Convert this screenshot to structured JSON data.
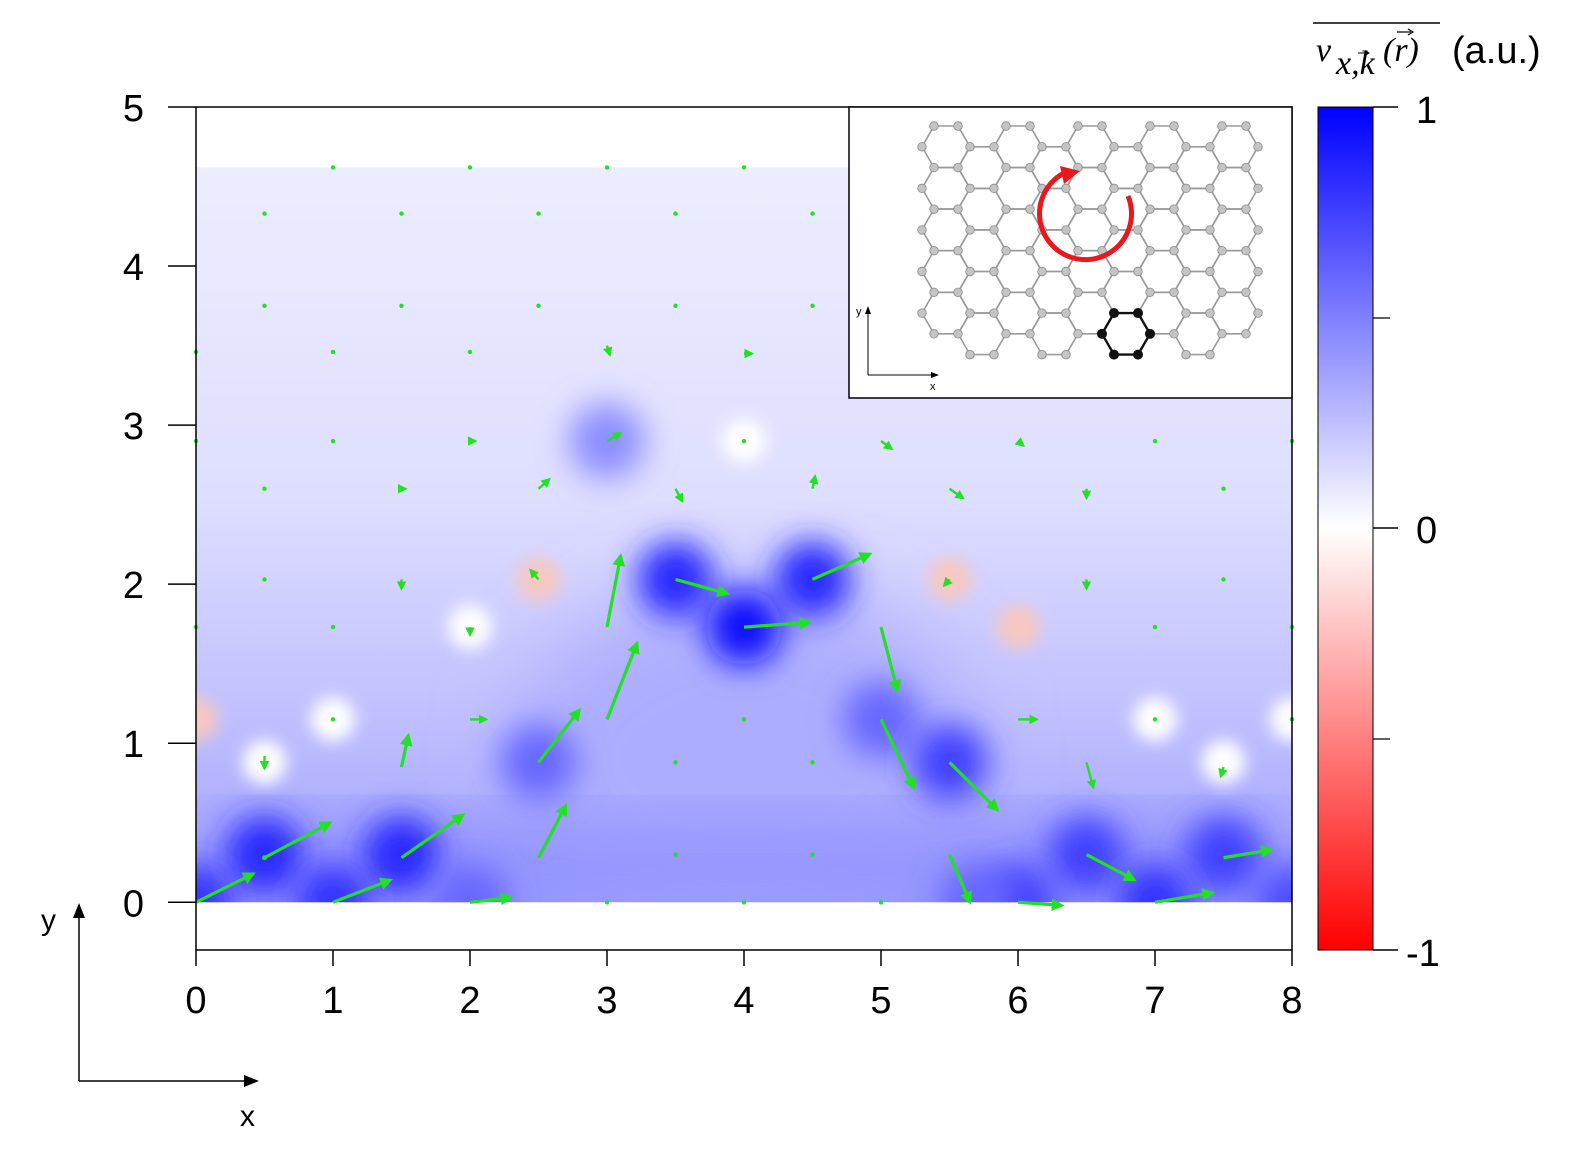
{
  "chart_data": {
    "type": "heatmap",
    "colorbar": {
      "label": "v̄x,k(r) (a.u.)",
      "label_main": "v",
      "label_sub": "x,k",
      "label_arg": "(r)",
      "label_unit": "(a.u.)",
      "ticks": [
        1,
        0,
        -1
      ],
      "range": [
        -1,
        1
      ],
      "colormap": [
        "#ff0000",
        "#ffffff",
        "#0000ff"
      ]
    },
    "xlim": [
      0,
      8
    ],
    "ylim": [
      -0.3,
      5
    ],
    "xticks": [
      0,
      1,
      2,
      3,
      4,
      5,
      6,
      7,
      8
    ],
    "yticks": [
      0,
      1,
      2,
      3,
      4,
      5
    ],
    "data_region": {
      "x": [
        0,
        8
      ],
      "y": [
        0,
        4.62
      ]
    },
    "axes_indicator": {
      "x_label": "x",
      "y_label": "y"
    },
    "intensity_peaks": [
      {
        "x": 0.5,
        "y": 0.3,
        "v": 0.85
      },
      {
        "x": 1.5,
        "y": 0.3,
        "v": 0.85
      },
      {
        "x": 1.0,
        "y": 0.0,
        "v": 0.8
      },
      {
        "x": 0.0,
        "y": 0.0,
        "v": 0.8
      },
      {
        "x": 2.5,
        "y": 0.88,
        "v": 0.6
      },
      {
        "x": 3.5,
        "y": 2.03,
        "v": 0.85
      },
      {
        "x": 4.5,
        "y": 2.03,
        "v": 0.85
      },
      {
        "x": 4.0,
        "y": 1.73,
        "v": 0.95
      },
      {
        "x": 5.0,
        "y": 1.15,
        "v": 0.6
      },
      {
        "x": 5.5,
        "y": 0.88,
        "v": 0.75
      },
      {
        "x": 6.5,
        "y": 0.3,
        "v": 0.75
      },
      {
        "x": 7.5,
        "y": 0.3,
        "v": 0.75
      },
      {
        "x": 7.0,
        "y": 0.0,
        "v": 0.8
      },
      {
        "x": 6.0,
        "y": 0.0,
        "v": 0.75
      },
      {
        "x": 3.0,
        "y": 2.9,
        "v": 0.45
      },
      {
        "x": 2.0,
        "y": 0.0,
        "v": 0.6
      },
      {
        "x": 5.7,
        "y": 0.0,
        "v": 0.6
      },
      {
        "x": 8.0,
        "y": 0.0,
        "v": 0.7
      }
    ],
    "low_spots": [
      {
        "x": 2.5,
        "y": 2.03,
        "v": -0.15
      },
      {
        "x": 5.5,
        "y": 2.03,
        "v": -0.08
      },
      {
        "x": 6.0,
        "y": 1.73,
        "v": -0.06
      },
      {
        "x": 0.0,
        "y": 1.15,
        "v": -0.06
      },
      {
        "x": 4.0,
        "y": 2.9,
        "v": -0.03
      },
      {
        "x": 1.0,
        "y": 1.15,
        "v": -0.02
      },
      {
        "x": 7.0,
        "y": 1.15,
        "v": -0.02
      },
      {
        "x": 8.0,
        "y": 1.15,
        "v": -0.02
      },
      {
        "x": 2.0,
        "y": 1.73,
        "v": -0.02
      },
      {
        "x": 0.5,
        "y": 0.88,
        "v": -0.02
      },
      {
        "x": 7.5,
        "y": 0.88,
        "v": -0.02
      }
    ],
    "vectors": [
      {
        "x": 0.0,
        "y": 0.0,
        "dx": 0.42,
        "dy": 0.18
      },
      {
        "x": 0.5,
        "y": 0.28,
        "dx": 0.48,
        "dy": 0.22
      },
      {
        "x": 1.0,
        "y": 0.0,
        "dx": 0.42,
        "dy": 0.14
      },
      {
        "x": 1.5,
        "y": 0.28,
        "dx": 0.45,
        "dy": 0.27
      },
      {
        "x": 2.0,
        "y": 0.0,
        "dx": 0.3,
        "dy": 0.03
      },
      {
        "x": 2.5,
        "y": 0.28,
        "dx": 0.2,
        "dy": 0.33
      },
      {
        "x": 2.5,
        "y": 0.88,
        "dx": 0.3,
        "dy": 0.33
      },
      {
        "x": 3.0,
        "y": 1.15,
        "dx": 0.22,
        "dy": 0.48
      },
      {
        "x": 3.0,
        "y": 1.73,
        "dx": 0.1,
        "dy": 0.45
      },
      {
        "x": 3.5,
        "y": 2.03,
        "dx": 0.38,
        "dy": -0.09
      },
      {
        "x": 4.0,
        "y": 1.73,
        "dx": 0.48,
        "dy": 0.03
      },
      {
        "x": 4.5,
        "y": 2.03,
        "dx": 0.42,
        "dy": 0.16
      },
      {
        "x": 5.0,
        "y": 1.73,
        "dx": 0.12,
        "dy": -0.4
      },
      {
        "x": 5.0,
        "y": 1.15,
        "dx": 0.24,
        "dy": -0.43
      },
      {
        "x": 5.5,
        "y": 0.88,
        "dx": 0.35,
        "dy": -0.3
      },
      {
        "x": 5.5,
        "y": 0.3,
        "dx": 0.15,
        "dy": -0.3
      },
      {
        "x": 6.0,
        "y": 0.0,
        "dx": 0.32,
        "dy": -0.02
      },
      {
        "x": 6.5,
        "y": 0.3,
        "dx": 0.35,
        "dy": -0.16
      },
      {
        "x": 7.0,
        "y": 0.0,
        "dx": 0.42,
        "dy": 0.06
      },
      {
        "x": 7.5,
        "y": 0.28,
        "dx": 0.35,
        "dy": 0.05
      },
      {
        "x": 0.5,
        "y": 0.92,
        "dx": 0.0,
        "dy": -0.08
      },
      {
        "x": 1.5,
        "y": 0.85,
        "dx": 0.05,
        "dy": 0.2
      },
      {
        "x": 2.0,
        "y": 1.15,
        "dx": 0.12,
        "dy": 0.0
      },
      {
        "x": 6.0,
        "y": 1.15,
        "dx": 0.14,
        "dy": 0.0
      },
      {
        "x": 6.5,
        "y": 0.88,
        "dx": 0.05,
        "dy": -0.16
      },
      {
        "x": 7.5,
        "y": 0.85,
        "dx": -0.02,
        "dy": -0.06
      },
      {
        "x": 1.5,
        "y": 2.03,
        "dx": 0.0,
        "dy": -0.06
      },
      {
        "x": 2.0,
        "y": 1.73,
        "dx": 0.0,
        "dy": -0.05
      },
      {
        "x": 2.5,
        "y": 2.03,
        "dx": -0.06,
        "dy": 0.06
      },
      {
        "x": 3.0,
        "y": 2.9,
        "dx": 0.1,
        "dy": 0.05
      },
      {
        "x": 2.5,
        "y": 2.6,
        "dx": 0.08,
        "dy": 0.06
      },
      {
        "x": 1.5,
        "y": 2.6,
        "dx": 0.03,
        "dy": 0.0
      },
      {
        "x": 3.5,
        "y": 2.6,
        "dx": 0.05,
        "dy": -0.08
      },
      {
        "x": 4.5,
        "y": 2.6,
        "dx": 0.02,
        "dy": 0.08
      },
      {
        "x": 5.0,
        "y": 2.9,
        "dx": 0.08,
        "dy": -0.05
      },
      {
        "x": 5.5,
        "y": 2.6,
        "dx": 0.1,
        "dy": -0.06
      },
      {
        "x": 6.0,
        "y": 2.9,
        "dx": 0.04,
        "dy": -0.03
      },
      {
        "x": 6.5,
        "y": 2.6,
        "dx": 0.0,
        "dy": -0.06
      },
      {
        "x": 5.5,
        "y": 2.03,
        "dx": -0.04,
        "dy": -0.04
      },
      {
        "x": 6.5,
        "y": 2.03,
        "dx": 0.0,
        "dy": -0.06
      },
      {
        "x": 3.0,
        "y": 3.5,
        "dx": 0.02,
        "dy": -0.06
      },
      {
        "x": 4.0,
        "y": 3.45,
        "dx": 0.06,
        "dy": 0.0
      },
      {
        "x": 2.0,
        "y": 2.9,
        "dx": 0.04,
        "dy": 0.0
      },
      {
        "x": 0.5,
        "y": 0.28,
        "dx": 0.0,
        "dy": 0.0
      }
    ],
    "small_dots": [
      [
        1.0,
        4.62
      ],
      [
        2.0,
        4.62
      ],
      [
        3.0,
        4.62
      ],
      [
        4.0,
        4.62
      ],
      [
        0.5,
        4.33
      ],
      [
        1.5,
        4.33
      ],
      [
        2.5,
        4.33
      ],
      [
        3.5,
        4.33
      ],
      [
        4.5,
        4.33
      ],
      [
        0.5,
        3.75
      ],
      [
        1.5,
        3.75
      ],
      [
        2.5,
        3.75
      ],
      [
        3.5,
        3.75
      ],
      [
        4.5,
        3.75
      ],
      [
        1.0,
        3.46
      ],
      [
        2.0,
        3.46
      ],
      [
        0.0,
        3.46
      ],
      [
        1.0,
        2.9
      ],
      [
        4.0,
        2.9
      ],
      [
        7.0,
        2.9
      ],
      [
        0.0,
        2.9
      ],
      [
        0.5,
        2.6
      ],
      [
        7.5,
        2.6
      ],
      [
        0.5,
        2.03
      ],
      [
        7.5,
        2.03
      ],
      [
        1.0,
        1.73
      ],
      [
        7.0,
        1.73
      ],
      [
        0.0,
        1.73
      ],
      [
        8.0,
        1.73
      ],
      [
        1.0,
        1.15
      ],
      [
        7.0,
        1.15
      ],
      [
        4.0,
        1.15
      ],
      [
        3.5,
        0.88
      ],
      [
        4.5,
        0.88
      ],
      [
        3.5,
        0.3
      ],
      [
        4.5,
        0.3
      ],
      [
        3.0,
        0.0
      ],
      [
        4.0,
        0.0
      ],
      [
        5.0,
        0.0
      ],
      [
        8.0,
        2.9
      ],
      [
        8.0,
        1.15
      ]
    ],
    "inset": {
      "x_label": "x",
      "y_label": "y",
      "description_visible": false
    }
  }
}
